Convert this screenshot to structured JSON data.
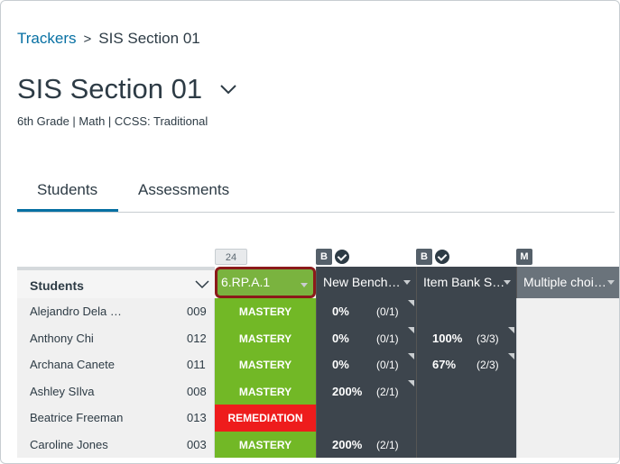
{
  "breadcrumb": {
    "root": "Trackers",
    "separator": ">",
    "current": "SIS Section 01"
  },
  "page": {
    "title": "SIS Section 01",
    "subtitle": "6th Grade | Math | CCSS: Traditional"
  },
  "tabs": [
    {
      "label": "Students"
    },
    {
      "label": "Assessments"
    }
  ],
  "grid": {
    "students_header": "Students",
    "columns": [
      {
        "badge": "24",
        "label": "6.RP.A.1"
      },
      {
        "badge": "B",
        "label": "New Bench…"
      },
      {
        "badge": "B",
        "label": "Item Bank S…"
      },
      {
        "badge": "M",
        "label": "Multiple choi…"
      }
    ],
    "rows": [
      {
        "name": "Alejandro Dela …",
        "id": "009",
        "standard": "MASTERY",
        "c2_pct": "0%",
        "c2_frac": "(0/1)",
        "c3_pct": "",
        "c3_frac": ""
      },
      {
        "name": "Anthony Chi",
        "id": "012",
        "standard": "MASTERY",
        "c2_pct": "0%",
        "c2_frac": "(0/1)",
        "c3_pct": "100%",
        "c3_frac": "(3/3)"
      },
      {
        "name": "Archana Canete",
        "id": "011",
        "standard": "MASTERY",
        "c2_pct": "0%",
        "c2_frac": "(0/1)",
        "c3_pct": "67%",
        "c3_frac": "(2/3)"
      },
      {
        "name": "Ashley SIlva",
        "id": "008",
        "standard": "MASTERY",
        "c2_pct": "200%",
        "c2_frac": "(2/1)",
        "c3_pct": "",
        "c3_frac": ""
      },
      {
        "name": "Beatrice Freeman",
        "id": "013",
        "standard": "REMEDIATION",
        "c2_pct": "",
        "c2_frac": "",
        "c3_pct": "",
        "c3_frac": ""
      },
      {
        "name": "Caroline Jones",
        "id": "003",
        "standard": "MASTERY",
        "c2_pct": "200%",
        "c2_frac": "(2/1)",
        "c3_pct": "",
        "c3_frac": ""
      }
    ]
  },
  "colors": {
    "link": "#0770a3",
    "mastery": "#72b826",
    "remediation": "#ee1c1c",
    "dark_cell": "#3d454d",
    "selected_border": "#8b1a1a"
  }
}
